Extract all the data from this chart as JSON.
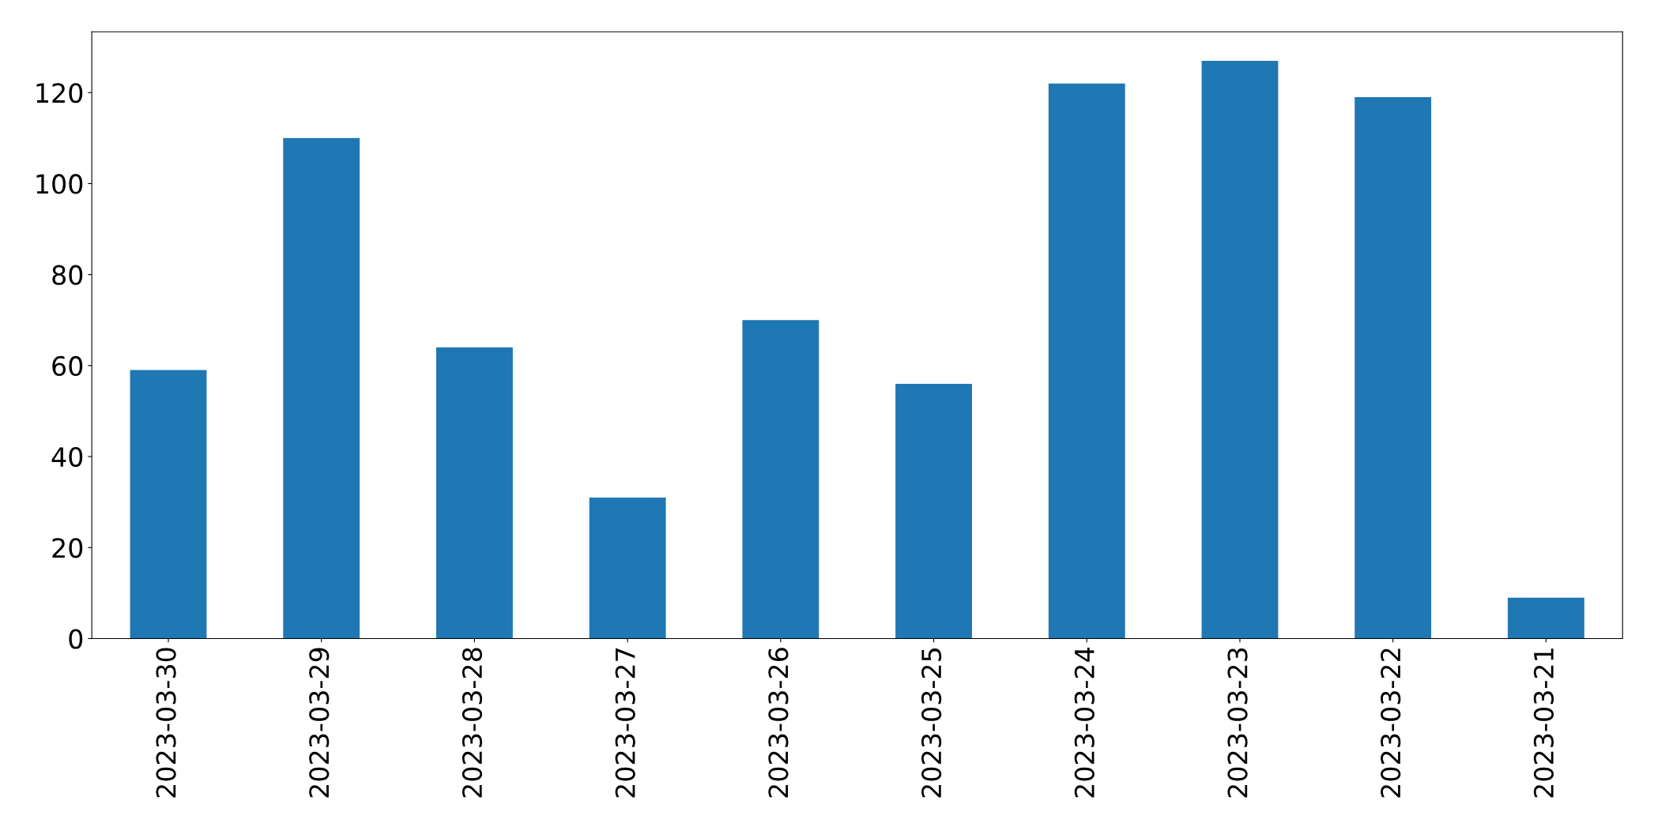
{
  "chart_data": {
    "type": "bar",
    "categories": [
      "2023-03-30",
      "2023-03-29",
      "2023-03-28",
      "2023-03-27",
      "2023-03-26",
      "2023-03-25",
      "2023-03-24",
      "2023-03-23",
      "2023-03-22",
      "2023-03-21"
    ],
    "values": [
      59,
      110,
      64,
      31,
      70,
      56,
      122,
      127,
      119,
      9
    ],
    "color": "#1f77b4",
    "ylim": [
      0,
      133.35
    ],
    "yticks": [
      0,
      20,
      40,
      60,
      80,
      100,
      120
    ],
    "grid": false
  }
}
